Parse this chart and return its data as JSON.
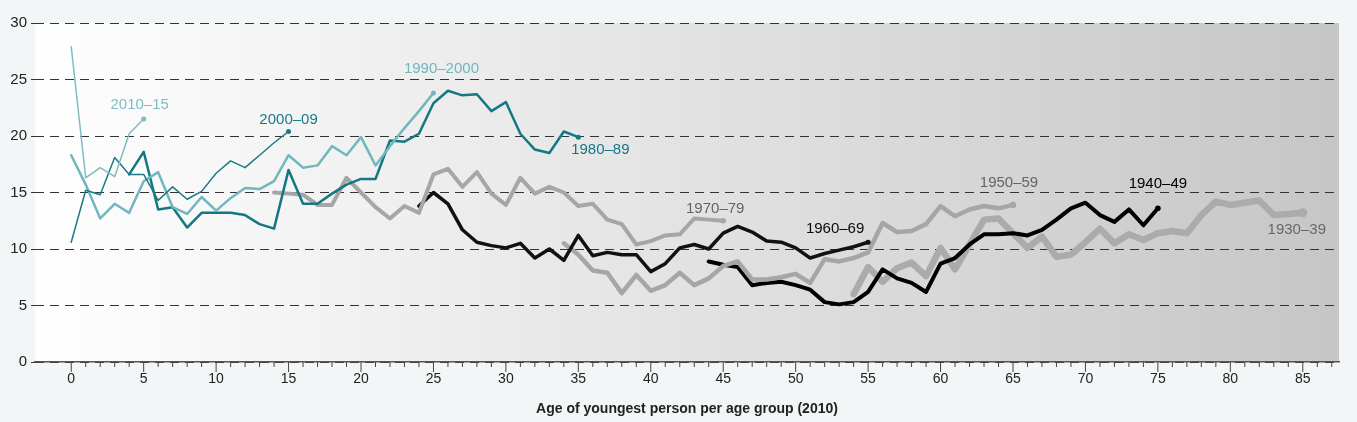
{
  "chart_data": {
    "type": "line",
    "xlabel": "Age of youngest person per age group (2010)",
    "xlim": [
      -2.5,
      87.5
    ],
    "xticks": [
      0,
      {
        "value": 1,
        "label": null
      },
      {
        "value": 2,
        "label": null
      },
      {
        "value": 3,
        "label": null
      },
      {
        "value": 4,
        "label": null
      },
      5,
      {
        "value": 6,
        "label": null
      },
      {
        "value": 7,
        "label": null
      },
      {
        "value": 8,
        "label": null
      },
      {
        "value": 9,
        "label": null
      },
      10,
      {
        "value": 11,
        "label": null
      },
      {
        "value": 12,
        "label": null
      },
      {
        "value": 13,
        "label": null
      },
      {
        "value": 14,
        "label": null
      },
      15,
      {
        "value": 16,
        "label": null
      },
      {
        "value": 17,
        "label": null
      },
      {
        "value": 18,
        "label": null
      },
      {
        "value": 19,
        "label": null
      },
      20,
      {
        "value": 21,
        "label": null
      },
      {
        "value": 22,
        "label": null
      },
      {
        "value": 23,
        "label": null
      },
      {
        "value": 24,
        "label": null
      },
      25,
      {
        "value": 26,
        "label": null
      },
      {
        "value": 27,
        "label": null
      },
      {
        "value": 28,
        "label": null
      },
      {
        "value": 29,
        "label": null
      },
      30,
      {
        "value": 31,
        "label": null
      },
      {
        "value": 32,
        "label": null
      },
      {
        "value": 33,
        "label": null
      },
      {
        "value": 34,
        "label": null
      },
      35,
      {
        "value": 36,
        "label": null
      },
      {
        "value": 37,
        "label": null
      },
      {
        "value": 38,
        "label": null
      },
      {
        "value": 39,
        "label": null
      },
      40,
      {
        "value": 41,
        "label": null
      },
      {
        "value": 42,
        "label": null
      },
      {
        "value": 43,
        "label": null
      },
      {
        "value": 44,
        "label": null
      },
      45,
      {
        "value": 46,
        "label": null
      },
      {
        "value": 47,
        "label": null
      },
      {
        "value": 48,
        "label": null
      },
      {
        "value": 49,
        "label": null
      },
      50,
      {
        "value": 51,
        "label": null
      },
      {
        "value": 52,
        "label": null
      },
      {
        "value": 53,
        "label": null
      },
      {
        "value": 54,
        "label": null
      },
      55,
      {
        "value": 56,
        "label": null
      },
      {
        "value": 57,
        "label": null
      },
      {
        "value": 58,
        "label": null
      },
      {
        "value": 59,
        "label": null
      },
      60,
      {
        "value": 61,
        "label": null
      },
      {
        "value": 62,
        "label": null
      },
      {
        "value": 63,
        "label": null
      },
      {
        "value": 64,
        "label": null
      },
      65,
      {
        "value": 66,
        "label": null
      },
      {
        "value": 67,
        "label": null
      },
      {
        "value": 68,
        "label": null
      },
      {
        "value": 69,
        "label": null
      },
      70,
      {
        "value": 71,
        "label": null
      },
      {
        "value": 72,
        "label": null
      },
      {
        "value": 73,
        "label": null
      },
      {
        "value": 74,
        "label": null
      },
      75,
      {
        "value": 76,
        "label": null
      },
      {
        "value": 77,
        "label": null
      },
      {
        "value": 78,
        "label": null
      },
      {
        "value": 79,
        "label": null
      },
      80,
      {
        "value": 81,
        "label": null
      },
      {
        "value": 82,
        "label": null
      },
      {
        "value": 83,
        "label": null
      },
      {
        "value": 84,
        "label": null
      },
      85,
      {
        "value": 86,
        "label": null
      },
      {
        "value": 87,
        "label": null
      }
    ],
    "ylim": [
      0,
      30
    ],
    "yticks": [
      0,
      5,
      10,
      15,
      20,
      25,
      30
    ],
    "grid": "y",
    "legend": false,
    "series": [
      {
        "name": "2010–15",
        "color": "#7fbcc4",
        "x": [
          0,
          1,
          2,
          3,
          4,
          5
        ],
        "values": [
          27.9,
          16.3,
          17.2,
          16.4,
          20.2,
          21.5
        ]
      },
      {
        "name": "2000–09",
        "color": "#1a7a86",
        "x": [
          0,
          1,
          2,
          3,
          4,
          5,
          6,
          7,
          8,
          9,
          10,
          11,
          12,
          13,
          14,
          15
        ],
        "values": [
          10.6,
          15.2,
          14.8,
          18.1,
          16.6,
          16.6,
          14.3,
          15.5,
          14.4,
          15.1,
          16.7,
          17.8,
          17.2,
          18.3,
          19.4,
          20.4
        ]
      },
      {
        "name": "1990–2000",
        "color": "#72b6be",
        "x": [
          0,
          1,
          2,
          3,
          4,
          5,
          6,
          7,
          8,
          9,
          10,
          11,
          12,
          13,
          14,
          15,
          16,
          17,
          18,
          19,
          20,
          21,
          22,
          23,
          24,
          25
        ],
        "values": [
          18.3,
          15.7,
          12.7,
          14.0,
          13.2,
          16.0,
          16.8,
          13.7,
          13.1,
          14.6,
          13.4,
          14.5,
          15.4,
          15.3,
          16.0,
          18.3,
          17.2,
          17.4,
          19.1,
          18.3,
          19.9,
          17.4,
          19.1,
          20.7,
          22.2,
          23.8
        ]
      },
      {
        "name": "1980–89",
        "color": "#137883",
        "x": [
          4,
          5,
          6,
          7,
          8,
          9,
          10,
          11,
          12,
          13,
          14,
          15,
          16,
          17,
          18,
          19,
          20,
          21,
          22,
          23,
          24,
          25,
          26,
          27,
          28,
          29,
          30,
          31,
          32,
          33,
          34,
          35
        ],
        "values": [
          16.6,
          18.6,
          13.5,
          13.7,
          11.9,
          13.2,
          13.2,
          13.2,
          13.0,
          12.2,
          11.8,
          17.0,
          14.0,
          14.0,
          14.9,
          15.7,
          16.2,
          16.2,
          19.6,
          19.5,
          20.2,
          22.9,
          24.0,
          23.6,
          23.7,
          22.2,
          23.0,
          20.2,
          18.8,
          18.5,
          20.4,
          19.9
        ]
      },
      {
        "name": "1970–79",
        "color": "#a6a6a6",
        "x": [
          14,
          15,
          16,
          17,
          18,
          19,
          20,
          21,
          22,
          23,
          24,
          25,
          26,
          27,
          28,
          29,
          30,
          31,
          32,
          33,
          34,
          35,
          36,
          37,
          38,
          39,
          40,
          41,
          42,
          43,
          44,
          45
        ],
        "values": [
          15.0,
          14.9,
          14.8,
          13.9,
          13.9,
          16.3,
          15.0,
          13.7,
          12.7,
          13.8,
          13.2,
          16.6,
          17.1,
          15.5,
          16.8,
          14.9,
          13.9,
          16.3,
          14.9,
          15.5,
          15.0,
          13.8,
          14.0,
          12.6,
          12.2,
          10.4,
          10.7,
          11.2,
          11.3,
          12.7,
          12.6,
          12.5
        ]
      },
      {
        "name": "1960–69",
        "color": "#111111",
        "x": [
          24,
          25,
          26,
          27,
          28,
          29,
          30,
          31,
          32,
          33,
          34,
          35,
          36,
          37,
          38,
          39,
          40,
          41,
          42,
          43,
          44,
          45,
          46,
          47,
          48,
          49,
          50,
          51,
          52,
          53,
          54,
          55
        ],
        "values": [
          13.8,
          15.0,
          14.0,
          11.7,
          10.6,
          10.3,
          10.1,
          10.5,
          9.2,
          10.0,
          9.0,
          11.2,
          9.4,
          9.7,
          9.5,
          9.5,
          8.0,
          8.7,
          10.1,
          10.4,
          10.0,
          11.4,
          12.0,
          11.5,
          10.7,
          10.6,
          10.1,
          9.2,
          9.6,
          9.9,
          10.2,
          10.6
        ]
      },
      {
        "name": "1950–59",
        "color": "#a6a6a6",
        "x": [
          34,
          35,
          36,
          37,
          38,
          39,
          40,
          41,
          42,
          43,
          44,
          45,
          46,
          47,
          48,
          49,
          50,
          51,
          52,
          53,
          54,
          55,
          56,
          57,
          58,
          59,
          60,
          61,
          62,
          63,
          64,
          65
        ],
        "values": [
          10.5,
          9.5,
          8.1,
          7.9,
          6.1,
          7.7,
          6.3,
          6.8,
          7.9,
          6.8,
          7.4,
          8.5,
          8.9,
          7.3,
          7.3,
          7.5,
          7.8,
          7.0,
          9.1,
          8.9,
          9.2,
          9.7,
          12.3,
          11.5,
          11.6,
          12.2,
          13.8,
          12.9,
          13.5,
          13.8,
          13.6,
          13.9
        ]
      },
      {
        "name": "1940–49",
        "color": "#000000",
        "x": [
          44,
          45,
          46,
          47,
          48,
          49,
          50,
          51,
          52,
          53,
          54,
          55,
          56,
          57,
          58,
          59,
          60,
          61,
          62,
          63,
          64,
          65,
          66,
          67,
          68,
          69,
          70,
          71,
          72,
          73,
          74,
          75
        ],
        "values": [
          8.9,
          8.6,
          8.4,
          6.8,
          7.0,
          7.1,
          6.8,
          6.4,
          5.3,
          5.1,
          5.3,
          6.2,
          8.2,
          7.4,
          7.0,
          6.2,
          8.7,
          9.2,
          10.4,
          11.3,
          11.3,
          11.4,
          11.2,
          11.7,
          12.6,
          13.6,
          14.1,
          13.0,
          12.4,
          13.5,
          12.1,
          13.6
        ]
      },
      {
        "name": "1930–39",
        "color": "#ababab",
        "x": [
          54,
          55,
          56,
          57,
          58,
          59,
          60,
          61,
          62,
          63,
          64,
          65,
          66,
          67,
          68,
          69,
          70,
          71,
          72,
          73,
          74,
          75,
          76,
          77,
          78,
          79,
          80,
          81,
          82,
          83,
          84,
          85
        ],
        "values": [
          6.0,
          8.4,
          7.1,
          8.3,
          8.8,
          7.6,
          10.1,
          8.2,
          10.4,
          12.6,
          12.7,
          11.4,
          10.1,
          11.1,
          9.3,
          9.5,
          10.6,
          11.8,
          10.5,
          11.3,
          10.8,
          11.4,
          11.6,
          11.4,
          13.0,
          14.2,
          13.9,
          14.1,
          14.3,
          13.0,
          13.1,
          13.2
        ]
      }
    ]
  }
}
